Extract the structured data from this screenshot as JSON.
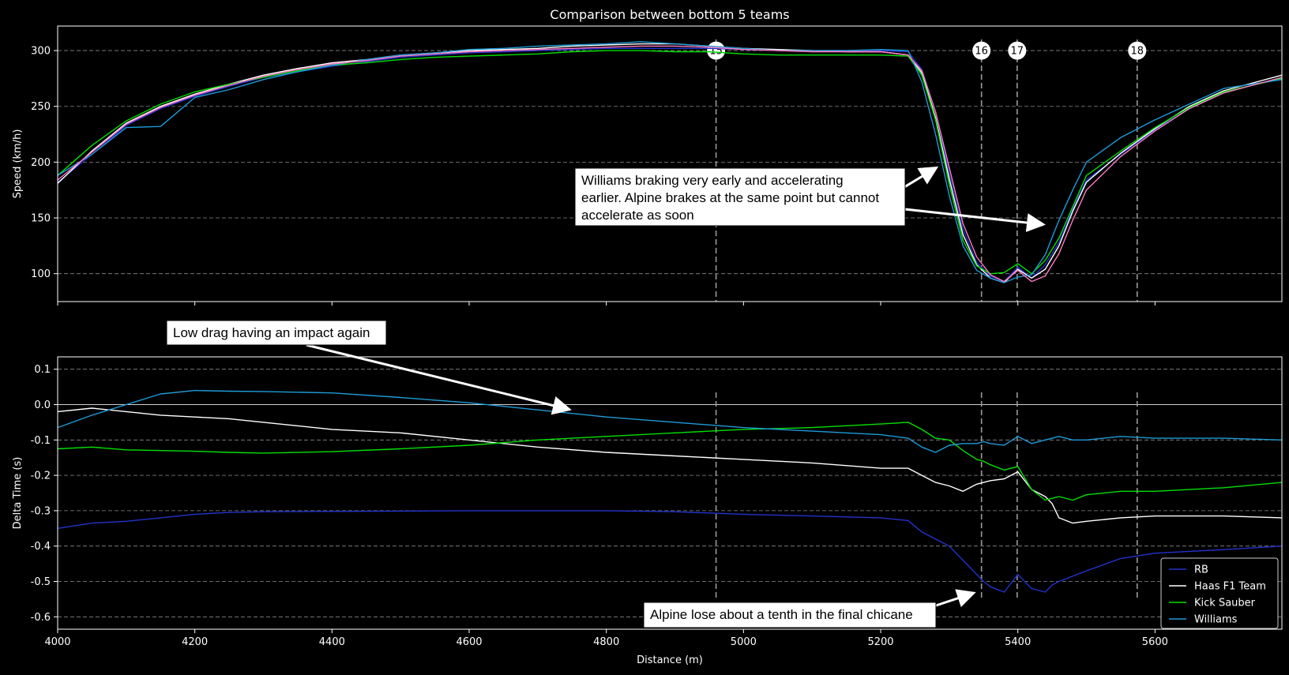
{
  "chart_data": {
    "type": "line",
    "title": "Comparison between bottom 5 teams",
    "xlabel": "Distance (m)",
    "xlim": [
      4000,
      5785
    ],
    "x_ticks": [
      4000,
      4200,
      4400,
      4600,
      4800,
      5000,
      5200,
      5400,
      5600
    ],
    "corners": [
      {
        "label": "15",
        "x": 4960
      },
      {
        "label": "16",
        "x": 5347
      },
      {
        "label": "17",
        "x": 5399
      },
      {
        "label": "18",
        "x": 5574
      }
    ],
    "legend_position": "bottom-right",
    "series_colors": {
      "RB": "#2233cc",
      "Haas F1 Team": "#ffffff",
      "Kick Sauber": "#00e000",
      "Williams": "#1e9bd8",
      "Alpine": "#ff78c0"
    },
    "legend": [
      "RB",
      "Haas F1 Team",
      "Kick Sauber",
      "Williams"
    ],
    "panels": [
      {
        "id": "speed",
        "ylabel": "Speed (km/h)",
        "ylim": [
          75,
          322
        ],
        "y_ticks": [
          100,
          150,
          200,
          250,
          300
        ],
        "x": [
          4000,
          4050,
          4100,
          4150,
          4200,
          4250,
          4300,
          4350,
          4400,
          4450,
          4500,
          4550,
          4600,
          4650,
          4700,
          4750,
          4800,
          4850,
          4900,
          4950,
          5000,
          5050,
          5100,
          5150,
          5200,
          5240,
          5260,
          5280,
          5300,
          5320,
          5340,
          5360,
          5380,
          5400,
          5420,
          5440,
          5460,
          5480,
          5500,
          5550,
          5600,
          5650,
          5700,
          5785
        ],
        "series": [
          {
            "name": "RB",
            "values": [
              182,
              207,
              233,
              248,
              259,
              268,
              276,
              281,
              286,
              290,
              294,
              296,
              298,
              299,
              300,
              301,
              302,
              302,
              302,
              302,
              301,
              300,
              300,
              300,
              300,
              299,
              283,
              245,
              190,
              140,
              110,
              98,
              93,
              106,
              96,
              108,
              128,
              158,
              184,
              207,
              229,
              248,
              262,
              276
            ]
          },
          {
            "name": "Haas F1 Team",
            "values": [
              181,
              210,
              235,
              250,
              261,
              270,
              278,
              284,
              289,
              292,
              296,
              298,
              300,
              301,
              302,
              304,
              305,
              306,
              306,
              304,
              302,
              301,
              300,
              299,
              299,
              296,
              280,
              240,
              185,
              135,
              108,
              96,
              92,
              104,
              96,
              104,
              125,
              156,
              182,
              208,
              230,
              250,
              264,
              278
            ]
          },
          {
            "name": "Kick Sauber",
            "values": [
              188,
              215,
              237,
              252,
              263,
              270,
              276,
              282,
              287,
              289,
              292,
              294,
              295,
              296,
              297,
              299,
              300,
              300,
              299,
              299,
              297,
              296,
              296,
              296,
              296,
              295,
              278,
              238,
              180,
              130,
              107,
              100,
              101,
              109,
              100,
              112,
              132,
              160,
              188,
              210,
              231,
              249,
              263,
              275
            ]
          },
          {
            "name": "Williams",
            "values": [
              188,
              207,
              231,
              232,
              258,
              265,
              274,
              281,
              287,
              292,
              296,
              298,
              301,
              302,
              304,
              305,
              306,
              308,
              306,
              304,
              302,
              300,
              300,
              300,
              301,
              300,
              272,
              225,
              170,
              125,
              103,
              96,
              92,
              97,
              99,
              117,
              148,
              175,
              200,
              222,
              238,
              252,
              266,
              274
            ]
          },
          {
            "name": "Alpine",
            "values": [
              184,
              209,
              234,
              249,
              260,
              269,
              277,
              283,
              288,
              291,
              295,
              297,
              299,
              300,
              301,
              302,
              303,
              304,
              304,
              303,
              301,
              300,
              299,
              299,
              299,
              296,
              282,
              245,
              195,
              145,
              115,
              99,
              93,
              103,
              93,
              98,
              118,
              148,
              175,
              205,
              228,
              248,
              262,
              276
            ]
          }
        ]
      },
      {
        "id": "delta",
        "ylabel": "Delta Time (s)",
        "ylim": [
          -0.635,
          0.135
        ],
        "y_ticks": [
          0.1,
          0.0,
          -0.1,
          -0.2,
          -0.3,
          -0.4,
          -0.5,
          -0.6
        ],
        "x": [
          4000,
          4050,
          4100,
          4150,
          4200,
          4250,
          4300,
          4400,
          4500,
          4600,
          4700,
          4800,
          4900,
          5000,
          5100,
          5200,
          5240,
          5260,
          5280,
          5300,
          5320,
          5340,
          5350,
          5360,
          5380,
          5400,
          5420,
          5440,
          5450,
          5460,
          5480,
          5500,
          5550,
          5600,
          5700,
          5785
        ],
        "series": [
          {
            "name": "RB",
            "values": [
              -0.35,
              -0.335,
              -0.33,
              -0.32,
              -0.31,
              -0.305,
              -0.303,
              -0.302,
              -0.301,
              -0.3,
              -0.3,
              -0.3,
              -0.303,
              -0.31,
              -0.315,
              -0.32,
              -0.328,
              -0.36,
              -0.38,
              -0.4,
              -0.44,
              -0.48,
              -0.5,
              -0.515,
              -0.53,
              -0.48,
              -0.52,
              -0.53,
              -0.51,
              -0.5,
              -0.485,
              -0.47,
              -0.435,
              -0.42,
              -0.41,
              -0.4
            ]
          },
          {
            "name": "Haas F1 Team",
            "values": [
              -0.02,
              -0.01,
              -0.02,
              -0.03,
              -0.035,
              -0.04,
              -0.05,
              -0.07,
              -0.08,
              -0.1,
              -0.12,
              -0.135,
              -0.145,
              -0.155,
              -0.165,
              -0.18,
              -0.18,
              -0.2,
              -0.22,
              -0.23,
              -0.245,
              -0.225,
              -0.22,
              -0.215,
              -0.21,
              -0.19,
              -0.24,
              -0.26,
              -0.28,
              -0.32,
              -0.335,
              -0.33,
              -0.32,
              -0.315,
              -0.315,
              -0.32
            ]
          },
          {
            "name": "Kick Sauber",
            "values": [
              -0.125,
              -0.12,
              -0.128,
              -0.13,
              -0.132,
              -0.135,
              -0.137,
              -0.133,
              -0.125,
              -0.115,
              -0.1,
              -0.09,
              -0.08,
              -0.07,
              -0.065,
              -0.055,
              -0.05,
              -0.07,
              -0.095,
              -0.1,
              -0.13,
              -0.155,
              -0.16,
              -0.17,
              -0.185,
              -0.175,
              -0.24,
              -0.27,
              -0.265,
              -0.26,
              -0.27,
              -0.255,
              -0.245,
              -0.245,
              -0.235,
              -0.22
            ]
          },
          {
            "name": "Williams",
            "values": [
              -0.065,
              -0.03,
              0.0,
              0.03,
              0.04,
              0.038,
              0.037,
              0.033,
              0.02,
              0.005,
              -0.015,
              -0.035,
              -0.05,
              -0.065,
              -0.075,
              -0.085,
              -0.095,
              -0.12,
              -0.135,
              -0.115,
              -0.11,
              -0.11,
              -0.105,
              -0.11,
              -0.115,
              -0.09,
              -0.11,
              -0.1,
              -0.095,
              -0.09,
              -0.1,
              -0.1,
              -0.09,
              -0.095,
              -0.095,
              -0.1
            ]
          }
        ]
      }
    ],
    "annotations": [
      {
        "id": "williams-braking",
        "lines": [
          "Williams braking very early and accelerating",
          "earlier. Alpine brakes at the same point but cannot",
          "accelerate as soon"
        ]
      },
      {
        "id": "low-drag",
        "lines": [
          "Low drag having an impact again"
        ]
      },
      {
        "id": "alpine-lose",
        "lines": [
          "Alpine lose about a tenth in the final chicane"
        ]
      }
    ]
  }
}
